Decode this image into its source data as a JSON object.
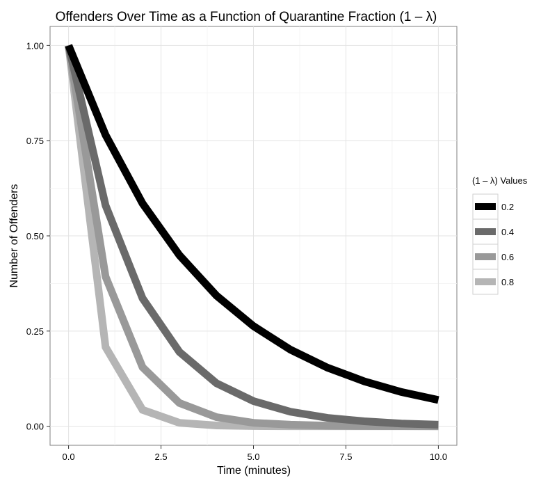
{
  "chart_data": {
    "type": "line",
    "title": "Offenders Over Time as a Function of Quarantine Fraction (1 – λ)",
    "xlabel": "Time (minutes)",
    "ylabel": "Number of Offenders",
    "xlim": [
      -0.5,
      10.5
    ],
    "ylim": [
      -0.05,
      1.05
    ],
    "xticks": [
      0.0,
      2.5,
      5.0,
      7.5,
      10.0
    ],
    "xtick_labels": [
      "0.0",
      "2.5",
      "5.0",
      "7.5",
      "10.0"
    ],
    "yticks": [
      0.0,
      0.25,
      0.5,
      0.75,
      1.0
    ],
    "ytick_labels": [
      "0.00",
      "0.25",
      "0.50",
      "0.75",
      "1.00"
    ],
    "grid": true,
    "legend": {
      "title": "(1 – λ) Values",
      "placement": "right"
    },
    "x": [
      0,
      1,
      2,
      3,
      4,
      5,
      6,
      7,
      8,
      9,
      10
    ],
    "series": [
      {
        "name": "0.2",
        "color": "#000000",
        "values": [
          1.0,
          0.765,
          0.585,
          0.449,
          0.343,
          0.263,
          0.201,
          0.154,
          0.118,
          0.09,
          0.069
        ]
      },
      {
        "name": "0.4",
        "color": "#6a6a6a",
        "values": [
          1.0,
          0.58,
          0.336,
          0.195,
          0.113,
          0.066,
          0.038,
          0.022,
          0.013,
          0.007,
          0.004
        ]
      },
      {
        "name": "0.6",
        "color": "#999999",
        "values": [
          1.0,
          0.393,
          0.155,
          0.061,
          0.024,
          0.009,
          0.004,
          0.0015,
          0.0006,
          0.0002,
          0.0001
        ]
      },
      {
        "name": "0.8",
        "color": "#b5b5b5",
        "values": [
          1.0,
          0.208,
          0.043,
          0.009,
          0.002,
          0.0004,
          0.0001,
          0.0,
          0.0,
          0.0,
          0.0
        ]
      }
    ]
  }
}
